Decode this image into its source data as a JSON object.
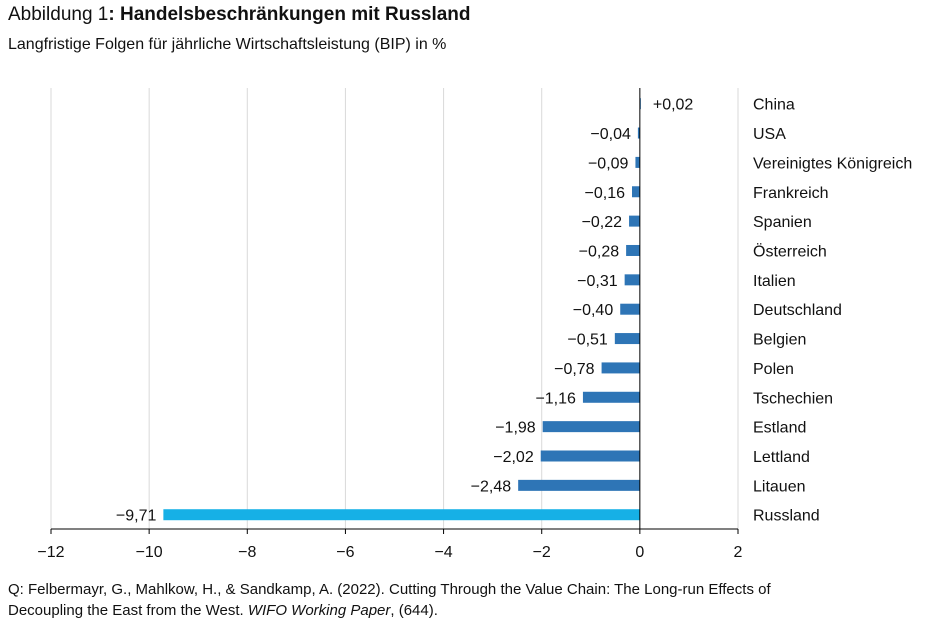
{
  "figure": {
    "label": "Abbildung 1",
    "label_sep": ": ",
    "title": "Handelsbeschränkungen mit Russland",
    "subtitle": "Langfristige Folgen für jährliche Wirtschaftsleistung (BIP) in %"
  },
  "source": {
    "line1": "Q: Felbermayr, G., Mahlkow, H., & Sandkamp, A. (2022). Cutting Through the Value Chain: The Long-run Effects of",
    "line2_pre": "Decoupling the East from the West. ",
    "line2_journal": "WIFO Working Paper",
    "line2_post": ", (644)."
  },
  "chart_data": {
    "type": "bar",
    "orientation": "horizontal",
    "title": "Handelsbeschränkungen mit Russland",
    "subtitle": "Langfristige Folgen für jährliche Wirtschaftsleistung (BIP) in %",
    "xlabel": "",
    "ylabel": "",
    "xlim": [
      -12,
      2
    ],
    "xticks": [
      -12,
      -10,
      -8,
      -6,
      -4,
      -2,
      0,
      2
    ],
    "xtick_labels": [
      "−12",
      "−10",
      "−8",
      "−6",
      "−4",
      "−2",
      "0",
      "2"
    ],
    "grid": "vertical",
    "categories": [
      "China",
      "USA",
      "Vereinigtes Königreich",
      "Frankreich",
      "Spanien",
      "Österreich",
      "Italien",
      "Deutschland",
      "Belgien",
      "Polen",
      "Tschechien",
      "Estland",
      "Lettland",
      "Litauen",
      "Russland"
    ],
    "values": [
      0.02,
      -0.04,
      -0.09,
      -0.16,
      -0.22,
      -0.28,
      -0.31,
      -0.4,
      -0.51,
      -0.78,
      -1.16,
      -1.98,
      -2.02,
      -2.48,
      -9.71
    ],
    "value_labels": [
      "+0,02",
      "−0,04",
      "−0,09",
      "−0,16",
      "−0,22",
      "−0,28",
      "−0,31",
      "−0,40",
      "−0,51",
      "−0,78",
      "−1,16",
      "−1,98",
      "−2,02",
      "−2,48",
      "−9,71"
    ],
    "colors": {
      "bar": "#2e75b6",
      "highlight": "#16b0e6",
      "grid": "#d9d9d9",
      "axis": "#000000"
    },
    "highlight_category": "Russland"
  }
}
